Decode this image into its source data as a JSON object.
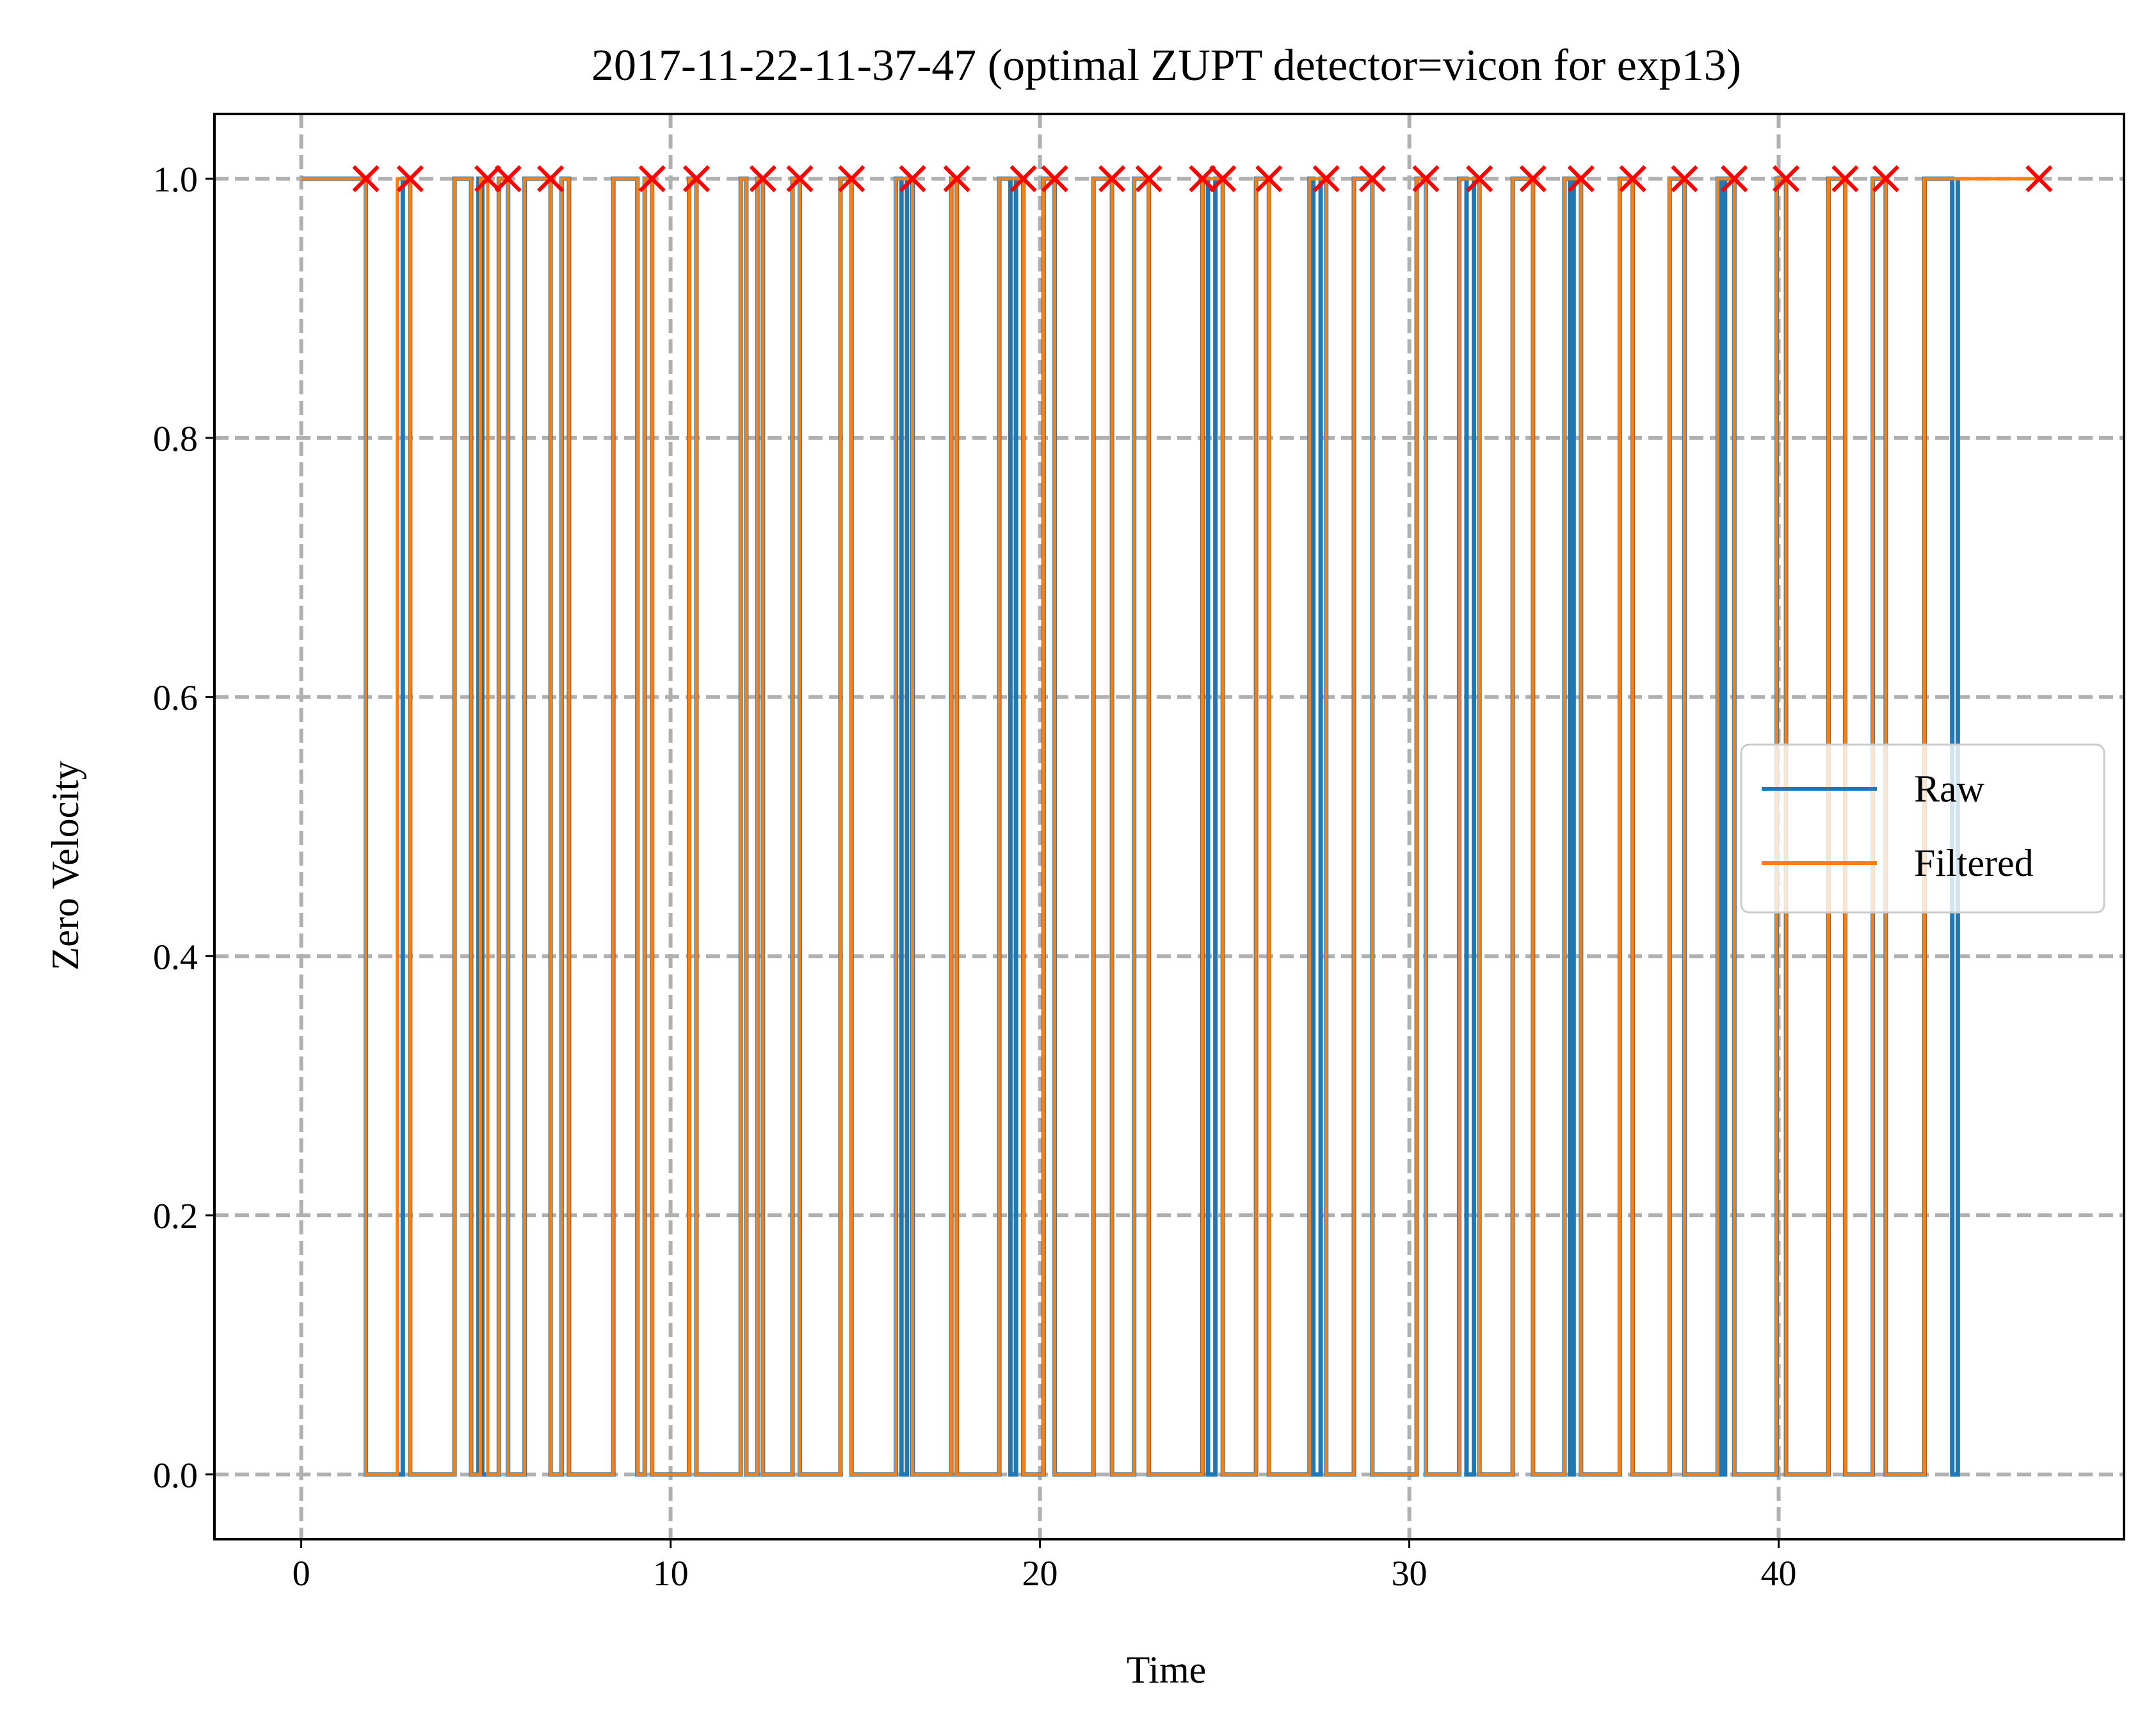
{
  "chart_data": {
    "type": "line",
    "title": "2017-11-22-11-37-47 (optimal ZUPT detector=vicon for exp13)",
    "xlabel": "Time",
    "ylabel": "Zero Velocity",
    "xlim": [
      -2.35,
      49.35
    ],
    "ylim": [
      -0.05,
      1.05
    ],
    "xticks": [
      0,
      10,
      20,
      30,
      40
    ],
    "yticks": [
      0.0,
      0.2,
      0.4,
      0.6,
      0.8,
      1.0
    ],
    "xtick_labels": [
      "0",
      "10",
      "20",
      "30",
      "40"
    ],
    "ytick_labels": [
      "0.0",
      "0.2",
      "0.4",
      "0.6",
      "0.8",
      "1.0"
    ],
    "grid": true,
    "legend_position": "center-right",
    "colors": {
      "raw": "#1f77b4",
      "filtered": "#ff7f0e",
      "markers": "#ff0000",
      "grid": "#b0b0b0"
    },
    "series": [
      {
        "name": "Raw",
        "step_intervals_zero": [
          [
            1.75,
            2.75
          ],
          [
            2.95,
            4.15
          ],
          [
            4.6,
            4.8
          ],
          [
            4.9,
            5.35
          ],
          [
            5.6,
            6.05
          ],
          [
            6.75,
            7.05
          ],
          [
            7.25,
            8.45
          ],
          [
            9.1,
            9.3
          ],
          [
            9.5,
            10.5
          ],
          [
            10.7,
            11.9
          ],
          [
            12.05,
            12.35
          ],
          [
            12.5,
            13.3
          ],
          [
            13.5,
            14.6
          ],
          [
            14.9,
            16.1
          ],
          [
            16.25,
            16.4
          ],
          [
            16.55,
            17.6
          ],
          [
            17.75,
            18.9
          ],
          [
            19.2,
            19.35
          ],
          [
            19.55,
            20.1
          ],
          [
            20.4,
            21.45
          ],
          [
            21.95,
            22.55
          ],
          [
            22.95,
            24.4
          ],
          [
            24.55,
            24.75
          ],
          [
            24.95,
            25.85
          ],
          [
            26.2,
            27.3
          ],
          [
            27.4,
            27.6
          ],
          [
            27.75,
            28.5
          ],
          [
            29.0,
            30.2
          ],
          [
            30.45,
            31.35
          ],
          [
            31.55,
            31.75
          ],
          [
            31.9,
            32.8
          ],
          [
            33.35,
            34.2
          ],
          [
            34.35,
            34.45
          ],
          [
            34.65,
            35.7
          ],
          [
            36.05,
            37.05
          ],
          [
            37.45,
            38.35
          ],
          [
            38.45,
            38.55
          ],
          [
            38.8,
            39.95
          ],
          [
            40.2,
            41.35
          ],
          [
            41.8,
            42.55
          ],
          [
            42.9,
            43.95
          ],
          [
            44.7,
            44.85
          ]
        ],
        "x_start": 0,
        "x_end": 44.85
      },
      {
        "name": "Filtered",
        "step_intervals_zero": [
          [
            1.75,
            2.6
          ],
          [
            2.95,
            4.15
          ],
          [
            4.6,
            4.85
          ],
          [
            5.05,
            5.35
          ],
          [
            5.6,
            6.05
          ],
          [
            6.75,
            7.05
          ],
          [
            7.25,
            8.45
          ],
          [
            9.1,
            9.3
          ],
          [
            9.5,
            10.5
          ],
          [
            10.7,
            11.9
          ],
          [
            12.05,
            12.35
          ],
          [
            12.5,
            13.3
          ],
          [
            13.5,
            14.6
          ],
          [
            14.9,
            16.1
          ],
          [
            16.55,
            17.6
          ],
          [
            17.75,
            18.9
          ],
          [
            19.55,
            20.1
          ],
          [
            20.4,
            21.45
          ],
          [
            21.95,
            22.55
          ],
          [
            22.95,
            24.4
          ],
          [
            24.95,
            25.85
          ],
          [
            26.2,
            27.3
          ],
          [
            27.75,
            28.5
          ],
          [
            29.0,
            30.2
          ],
          [
            30.45,
            31.35
          ],
          [
            31.9,
            32.8
          ],
          [
            33.35,
            34.2
          ],
          [
            34.65,
            35.7
          ],
          [
            36.05,
            37.05
          ],
          [
            37.45,
            38.35
          ],
          [
            38.8,
            39.95
          ],
          [
            40.2,
            41.35
          ],
          [
            41.8,
            42.55
          ],
          [
            42.9,
            43.95
          ]
        ],
        "x_start": 0,
        "x_end": 47.05
      }
    ],
    "markers": {
      "symbol": "x",
      "y": 1.0,
      "x": [
        1.75,
        2.95,
        5.05,
        5.6,
        6.75,
        9.5,
        10.7,
        12.5,
        13.5,
        14.9,
        16.55,
        17.75,
        19.55,
        20.4,
        21.95,
        22.95,
        24.4,
        24.95,
        26.2,
        27.75,
        29.0,
        30.45,
        31.9,
        33.35,
        34.65,
        36.05,
        37.45,
        38.8,
        40.2,
        41.8,
        42.9,
        47.05
      ]
    }
  }
}
